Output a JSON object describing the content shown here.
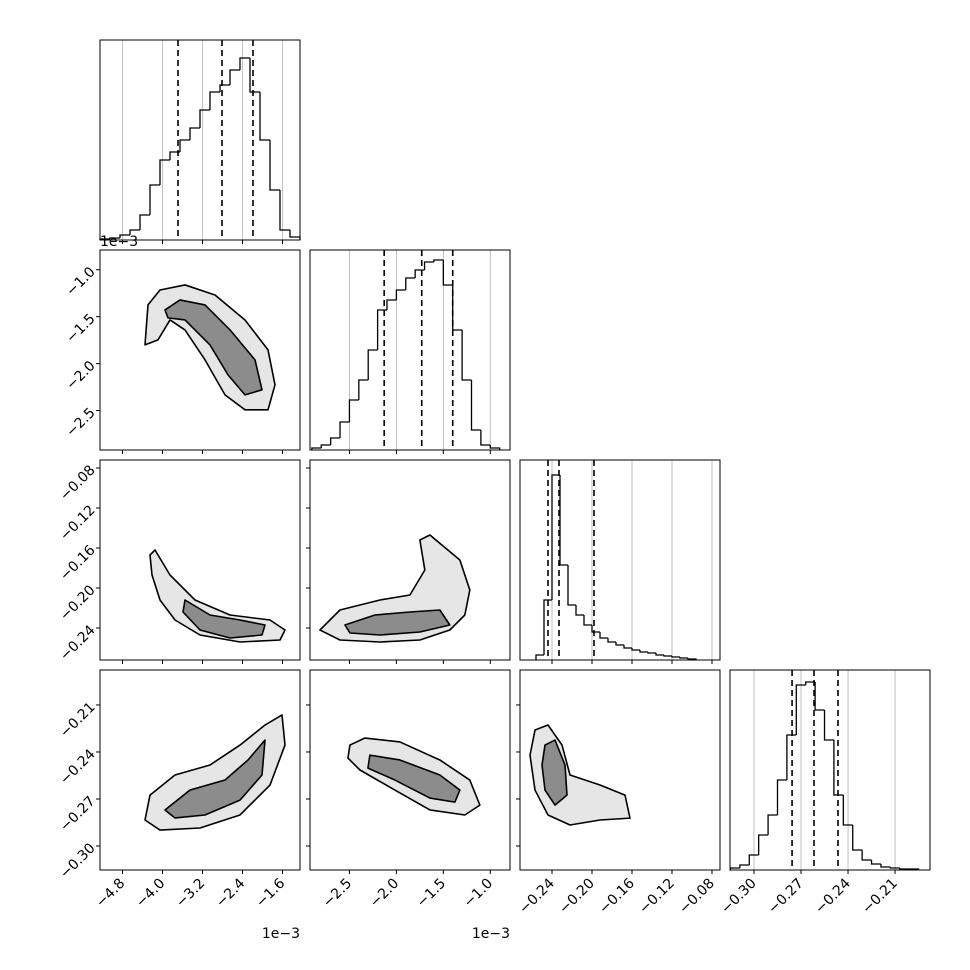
{
  "chart_data": {
    "type": "corner",
    "line_color": "#000000",
    "grid": true,
    "params": [
      {
        "lim": [
          -5.25,
          -1.25
        ],
        "offset_label": "1e−3",
        "ticks": [
          {
            "value": -4.8,
            "label": "−4.8"
          },
          {
            "value": -4.0,
            "label": "−4.0"
          },
          {
            "value": -3.2,
            "label": "−3.2"
          },
          {
            "value": -2.4,
            "label": "−2.4"
          },
          {
            "value": -1.6,
            "label": "−1.6"
          }
        ]
      },
      {
        "lim": [
          -2.92,
          -0.79
        ],
        "offset_label": "1e−3",
        "ticks": [
          {
            "value": -2.5,
            "label": "−2.5"
          },
          {
            "value": -2.0,
            "label": "−2.0"
          },
          {
            "value": -1.5,
            "label": "−1.5"
          },
          {
            "value": -1.0,
            "label": "−1.0"
          }
        ]
      },
      {
        "lim": [
          -0.272,
          -0.072
        ],
        "ticks": [
          {
            "value": -0.24,
            "label": "−0.24"
          },
          {
            "value": -0.2,
            "label": "−0.20"
          },
          {
            "value": -0.16,
            "label": "−0.16"
          },
          {
            "value": -0.12,
            "label": "−0.12"
          },
          {
            "value": -0.08,
            "label": "−0.08"
          }
        ]
      },
      {
        "lim": [
          -0.3153,
          -0.1877
        ],
        "ticks": [
          {
            "value": -0.3,
            "label": "−0.30"
          },
          {
            "value": -0.27,
            "label": "−0.27"
          },
          {
            "value": -0.24,
            "label": "−0.24"
          },
          {
            "value": -0.21,
            "label": "−0.21"
          }
        ]
      }
    ],
    "histograms": [
      {
        "ylim": [
          0,
          200
        ],
        "bins": [
          -5.25,
          -5.05,
          -4.85,
          -4.65,
          -4.45,
          -4.25,
          -4.05,
          -3.85,
          -3.65,
          -3.45,
          -3.25,
          -3.05,
          -2.85,
          -2.65,
          -2.45,
          -2.25,
          -2.05,
          -1.85,
          -1.65,
          -1.45,
          -1.25
        ],
        "counts": [
          1,
          2,
          5,
          10,
          25,
          55,
          80,
          88,
          100,
          112,
          130,
          148,
          155,
          170,
          182,
          148,
          100,
          50,
          10,
          3
        ],
        "quantiles": [
          -3.69,
          -2.81,
          -2.19
        ]
      },
      {
        "ylim": [
          0,
          200
        ],
        "bins": [
          -2.9,
          -2.8,
          -2.7,
          -2.6,
          -2.5,
          -2.4,
          -2.3,
          -2.2,
          -2.1,
          -2.0,
          -1.9,
          -1.8,
          -1.7,
          -1.6,
          -1.5,
          -1.4,
          -1.3,
          -1.2,
          -1.1,
          -1.0,
          -0.9
        ],
        "counts": [
          2,
          5,
          12,
          28,
          50,
          70,
          100,
          140,
          150,
          160,
          172,
          180,
          188,
          190,
          165,
          120,
          70,
          20,
          5,
          2
        ],
        "quantiles": [
          -2.13,
          -1.73,
          -1.4
        ]
      },
      {
        "ylim": [
          0,
          200
        ],
        "bins": [
          -0.256,
          -0.248,
          -0.24,
          -0.232,
          -0.224,
          -0.216,
          -0.208,
          -0.2,
          -0.192,
          -0.184,
          -0.176,
          -0.168,
          -0.16,
          -0.152,
          -0.144,
          -0.136,
          -0.128,
          -0.12,
          -0.112,
          -0.104,
          -0.096
        ],
        "counts": [
          5,
          60,
          185,
          95,
          55,
          45,
          35,
          28,
          22,
          18,
          15,
          12,
          10,
          8,
          7,
          5,
          4,
          3,
          2,
          1
        ],
        "quantiles": [
          -0.244,
          -0.233,
          -0.198
        ]
      },
      {
        "ylim": [
          0,
          200
        ],
        "bins": [
          -0.315,
          -0.309,
          -0.303,
          -0.297,
          -0.291,
          -0.285,
          -0.279,
          -0.273,
          -0.267,
          -0.261,
          -0.255,
          -0.249,
          -0.243,
          -0.237,
          -0.231,
          -0.225,
          -0.219,
          -0.213,
          -0.207,
          -0.201,
          -0.195
        ],
        "counts": [
          2,
          5,
          15,
          35,
          55,
          90,
          135,
          185,
          188,
          160,
          130,
          75,
          45,
          20,
          10,
          6,
          3,
          2,
          1,
          1
        ],
        "quantiles": [
          -0.2757,
          -0.2617,
          -0.2464
        ]
      }
    ],
    "pairs": [
      {
        "x_param": 0,
        "y_param": 1,
        "contours": [
          {
            "fill": "#e6e6e6",
            "x": [
              -4.35,
              -4.29,
              -4.05,
              -3.55,
              -2.95,
              -2.35,
              -1.89,
              -1.75,
              -1.89,
              -2.35,
              -2.75,
              -3.15,
              -3.55,
              -3.85,
              -4.09
            ],
            "y": [
              -1.8,
              -1.375,
              -1.216,
              -1.162,
              -1.269,
              -1.535,
              -1.854,
              -2.226,
              -2.492,
              -2.492,
              -2.333,
              -1.96,
              -1.641,
              -1.535,
              -1.747
            ]
          },
          {
            "fill": "#8c8c8c",
            "x": [
              -3.95,
              -3.65,
              -3.15,
              -2.65,
              -2.15,
              -2.01,
              -2.35,
              -2.69,
              -3.05,
              -3.55,
              -3.89
            ],
            "y": [
              -1.428,
              -1.322,
              -1.375,
              -1.641,
              -1.96,
              -2.279,
              -2.333,
              -2.12,
              -1.801,
              -1.535,
              -1.513
            ]
          }
        ]
      },
      {
        "x_param": 0,
        "y_param": 2,
        "contours": [
          {
            "fill": "#e6e6e6",
            "x": [
              -4.15,
              -3.85,
              -3.35,
              -2.65,
              -1.85,
              -1.55,
              -1.65,
              -2.45,
              -3.25,
              -3.75,
              -4.05,
              -4.21,
              -4.25
            ],
            "y": [
              -0.162,
              -0.187,
              -0.212,
              -0.227,
              -0.232,
              -0.242,
              -0.252,
              -0.254,
              -0.247,
              -0.232,
              -0.212,
              -0.187,
              -0.167
            ]
          },
          {
            "fill": "#8c8c8c",
            "x": [
              -3.55,
              -3.05,
              -2.45,
              -1.95,
              -2.01,
              -2.65,
              -3.25,
              -3.59
            ],
            "y": [
              -0.212,
              -0.227,
              -0.232,
              -0.237,
              -0.247,
              -0.25,
              -0.242,
              -0.224
            ]
          }
        ]
      },
      {
        "x_param": 1,
        "y_param": 2,
        "contours": [
          {
            "fill": "#e6e6e6",
            "x": [
              -2.814,
              -2.601,
              -2.175,
              -1.856,
              -1.697,
              -1.75,
              -1.643,
              -1.324,
              -1.218,
              -1.271,
              -1.431,
              -1.75,
              -2.175,
              -2.601
            ],
            "y": [
              -0.242,
              -0.222,
              -0.212,
              -0.207,
              -0.182,
              -0.152,
              -0.147,
              -0.172,
              -0.202,
              -0.227,
              -0.242,
              -0.252,
              -0.254,
              -0.252
            ]
          },
          {
            "fill": "#8c8c8c",
            "x": [
              -2.548,
              -2.229,
              -1.856,
              -1.537,
              -1.431,
              -1.75,
              -2.175,
              -2.494
            ],
            "y": [
              -0.237,
              -0.227,
              -0.224,
              -0.222,
              -0.237,
              -0.244,
              -0.247,
              -0.245
            ]
          }
        ]
      },
      {
        "x_param": 0,
        "y_param": 3,
        "contours": [
          {
            "fill": "#e6e6e6",
            "x": [
              -4.35,
              -4.25,
              -3.75,
              -3.05,
              -2.45,
              -1.95,
              -1.61,
              -1.55,
              -1.85,
              -2.45,
              -3.25,
              -4.05
            ],
            "y": [
              -0.2834,
              -0.2675,
              -0.2547,
              -0.2483,
              -0.2356,
              -0.2228,
              -0.2164,
              -0.2356,
              -0.2611,
              -0.2802,
              -0.2885,
              -0.2898
            ]
          },
          {
            "fill": "#8c8c8c",
            "x": [
              -3.95,
              -3.45,
              -2.75,
              -2.29,
              -1.95,
              -2.01,
              -2.45,
              -3.15,
              -3.75
            ],
            "y": [
              -0.277,
              -0.2643,
              -0.2579,
              -0.2451,
              -0.2324,
              -0.2547,
              -0.2707,
              -0.2802,
              -0.2821
            ]
          }
        ]
      },
      {
        "x_param": 1,
        "y_param": 3,
        "contours": [
          {
            "fill": "#e6e6e6",
            "x": [
              -2.495,
              -2.335,
              -1.963,
              -1.537,
              -1.218,
              -1.111,
              -1.271,
              -1.643,
              -2.016,
              -2.388,
              -2.516
            ],
            "y": [
              -0.2356,
              -0.2311,
              -0.2336,
              -0.2451,
              -0.2579,
              -0.2739,
              -0.2802,
              -0.277,
              -0.2643,
              -0.2515,
              -0.2439
            ]
          },
          {
            "fill": "#8c8c8c",
            "x": [
              -2.282,
              -1.963,
              -1.537,
              -1.324,
              -1.377,
              -1.643,
              -2.016,
              -2.303
            ],
            "y": [
              -0.242,
              -0.2451,
              -0.2547,
              -0.2643,
              -0.272,
              -0.2694,
              -0.2579,
              -0.2503
            ]
          }
        ]
      },
      {
        "x_param": 2,
        "y_param": 3,
        "contours": [
          {
            "fill": "#e6e6e6",
            "x": [
              -0.257,
              -0.244,
              -0.23,
              -0.222,
              -0.192,
              -0.167,
              -0.162,
              -0.192,
              -0.222,
              -0.244,
              -0.257,
              -0.262
            ],
            "y": [
              -0.226,
              -0.2228,
              -0.2356,
              -0.2547,
              -0.2611,
              -0.2675,
              -0.2822,
              -0.2834,
              -0.2866,
              -0.2802,
              -0.2643,
              -0.242
            ]
          },
          {
            "fill": "#8c8c8c",
            "x": [
              -0.247,
              -0.237,
              -0.227,
              -0.225,
              -0.237,
              -0.247,
              -0.25
            ],
            "y": [
              -0.2356,
              -0.2324,
              -0.2483,
              -0.2675,
              -0.2739,
              -0.2643,
              -0.2483
            ]
          }
        ]
      }
    ]
  }
}
